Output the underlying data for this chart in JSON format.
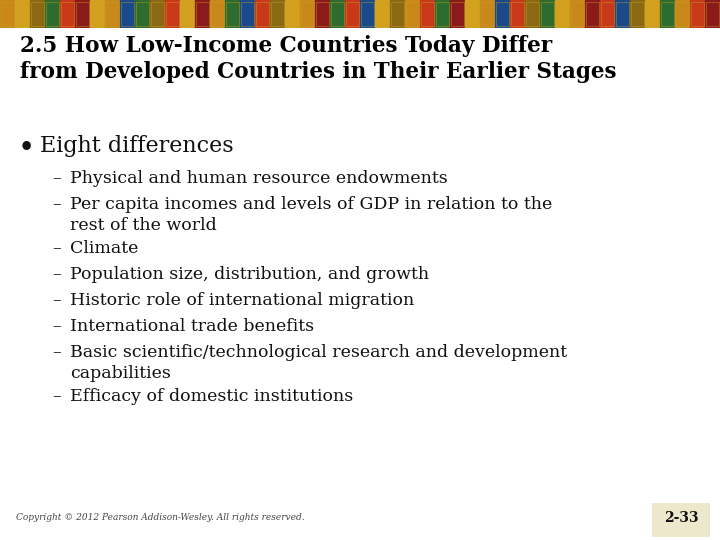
{
  "title_line1": "2.5 How Low-Income Countries Today Differ",
  "title_line2": "from Developed Countries in Their Earlier Stages",
  "bullet_main": "Eight differences",
  "sub_bullets": [
    "Physical and human resource endowments",
    "Per capita incomes and levels of GDP in relation to the\nrest of the world",
    "Climate",
    "Population size, distribution, and growth",
    "Historic role of international migration",
    "International trade benefits",
    "Basic scientific/technological research and development\ncapabilities",
    "Efficacy of domestic institutions"
  ],
  "footer_left": "Copyright © 2012 Pearson Addison-Wesley. All rights reserved.",
  "footer_right": "2-33",
  "bg_color": "#FFFFFF",
  "title_color": "#000000",
  "text_color": "#111111",
  "footer_box_color": "#EDE8CC",
  "title_fontsize": 15.5,
  "bullet_fontsize": 15,
  "sub_bullet_fontsize": 12.5,
  "footer_fontsize": 6.5,
  "mosaic_colors": [
    "#C8891A",
    "#D4A020",
    "#8B6914",
    "#2E6B2E",
    "#C8391A",
    "#8B1A1A",
    "#D4A020",
    "#C8891A",
    "#1A4A8A",
    "#2E6B2E",
    "#8B6914",
    "#C8391A",
    "#D4A020",
    "#8B1A1A",
    "#C8891A",
    "#2E6B2E",
    "#1A4A8A",
    "#C8391A",
    "#8B6914",
    "#D4A020",
    "#C8891A",
    "#8B1A1A",
    "#2E6B2E",
    "#C8391A",
    "#1A4A8A",
    "#D4A020",
    "#8B6914",
    "#C8891A",
    "#C8391A",
    "#2E6B2E",
    "#8B1A1A",
    "#D4A020",
    "#C8891A",
    "#1A4A8A",
    "#C8391A",
    "#8B6914",
    "#2E6B2E",
    "#D4A020",
    "#C8891A",
    "#8B1A1A",
    "#C8391A",
    "#1A4A8A",
    "#8B6914",
    "#D4A020",
    "#2E6B2E",
    "#C8891A",
    "#C8391A",
    "#8B1A1A"
  ]
}
